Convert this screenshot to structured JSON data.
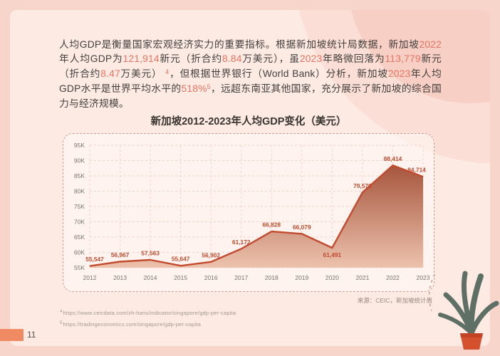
{
  "theme": {
    "frame": "#f8d5cb",
    "panel": "#fdeae3",
    "accent_red": "#e9735f",
    "line_color": "#c24a2e",
    "area_top": "#a5523a",
    "area_bottom": "#ecc2ad",
    "page_bar": "#ef8a62",
    "leaf_green": "#5e7066",
    "pot_orange": "#d5502d"
  },
  "page": {
    "number": "11"
  },
  "paragraph": {
    "segments": [
      {
        "t": "人均GDP是衡量国家宏观经济实力的重要指标。根据新加坡统计局数据，新加坡",
        "h": "n"
      },
      {
        "t": "2022",
        "h": "r"
      },
      {
        "t": "年人均GDP为",
        "h": "n"
      },
      {
        "t": "121,914",
        "h": "r"
      },
      {
        "t": "新元（折合约",
        "h": "n"
      },
      {
        "t": "8.84",
        "h": "r"
      },
      {
        "t": "万美元），虽",
        "h": "n"
      },
      {
        "t": "2023",
        "h": "r"
      },
      {
        "t": "年略微回落为",
        "h": "n"
      },
      {
        "t": "113,779",
        "h": "r"
      },
      {
        "t": "新元（折合约",
        "h": "n"
      },
      {
        "t": "8.47",
        "h": "r"
      },
      {
        "t": "万美元） ",
        "h": "n"
      },
      {
        "t": "4",
        "h": "rs"
      },
      {
        "t": "，但根据世界银行（World Bank）分析，新加坡",
        "h": "n"
      },
      {
        "t": "2023",
        "h": "r"
      },
      {
        "t": "年人均GDP水平是世界平均水平的",
        "h": "n"
      },
      {
        "t": "518%",
        "h": "r"
      },
      {
        "t": "5",
        "h": "rs"
      },
      {
        "t": "，远超东南亚其他国家，充分展示了新加坡的综合国力与经济规模。",
        "h": "n"
      }
    ]
  },
  "chart_data": {
    "type": "area",
    "title": "新加坡2012-2023年人均GDP变化（美元）",
    "categories": [
      "2012",
      "2013",
      "2014",
      "2015",
      "2016",
      "2017",
      "2018",
      "2019",
      "2020",
      "2021",
      "2022",
      "2023"
    ],
    "values": [
      55547,
      56967,
      57563,
      55647,
      56902,
      61172,
      66828,
      66079,
      61491,
      79570,
      88414,
      84714
    ],
    "xlabel": "",
    "ylabel": "",
    "ylim": [
      55000,
      95000
    ],
    "ytick_step": 5000,
    "ytick_labels": [
      "55K",
      "60K",
      "65K",
      "70K",
      "75K",
      "80K",
      "85K",
      "90K",
      "95K"
    ],
    "grid": true,
    "legend": "none",
    "label_below_indices": [
      8
    ]
  },
  "source": "来源：CEIC，新加坡统计局",
  "footnotes": [
    {
      "sup": "4",
      "text": "https://www.ceicdata.com/zh-hans/indicator/singapore/gdp-per-capita"
    },
    {
      "sup": "5",
      "text": "https://tradingeconomics.com/singapore/gdp-per-capita"
    }
  ]
}
